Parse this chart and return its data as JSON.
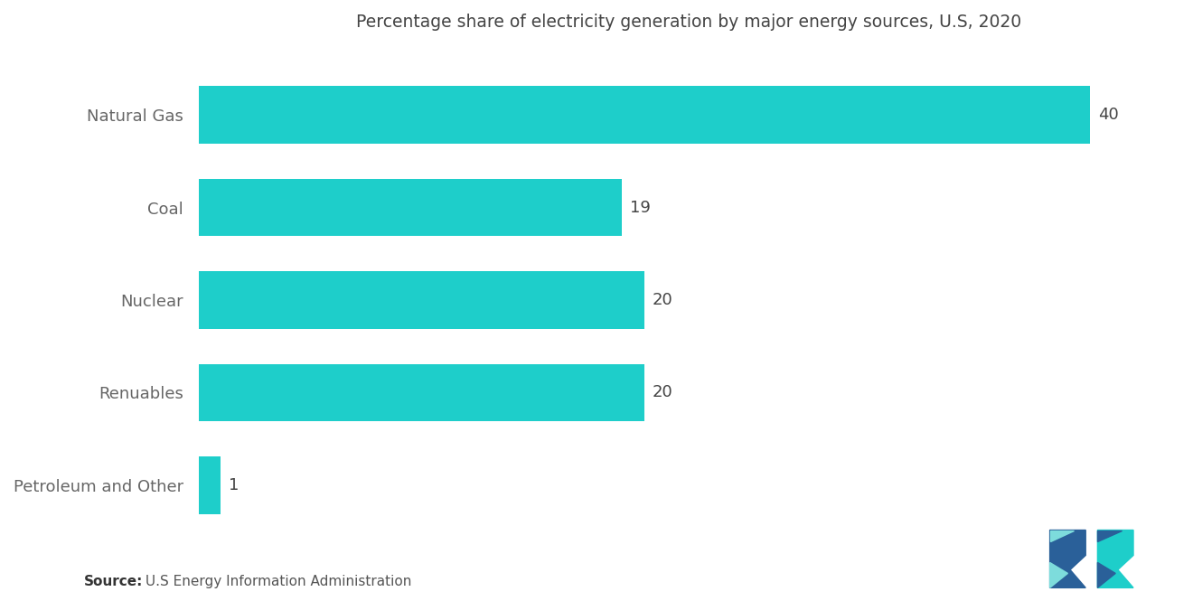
{
  "title": "Percentage share of electricity generation by major energy sources, U.S, 2020",
  "categories": [
    "Natural Gas",
    "Coal",
    "Nuclear",
    "Renuables",
    "Petroleum and Other"
  ],
  "values": [
    40,
    19,
    20,
    20,
    1
  ],
  "bar_color": "#1ECECA",
  "background_color": "#FFFFFF",
  "label_color": "#666666",
  "value_color": "#444444",
  "title_color": "#444444",
  "source_bold": "Source:",
  "source_rest": " U.S Energy Information Administration",
  "xlim": [
    0,
    44
  ],
  "bar_height": 0.62,
  "title_fontsize": 13.5,
  "label_fontsize": 13,
  "value_fontsize": 13,
  "source_fontsize": 11
}
